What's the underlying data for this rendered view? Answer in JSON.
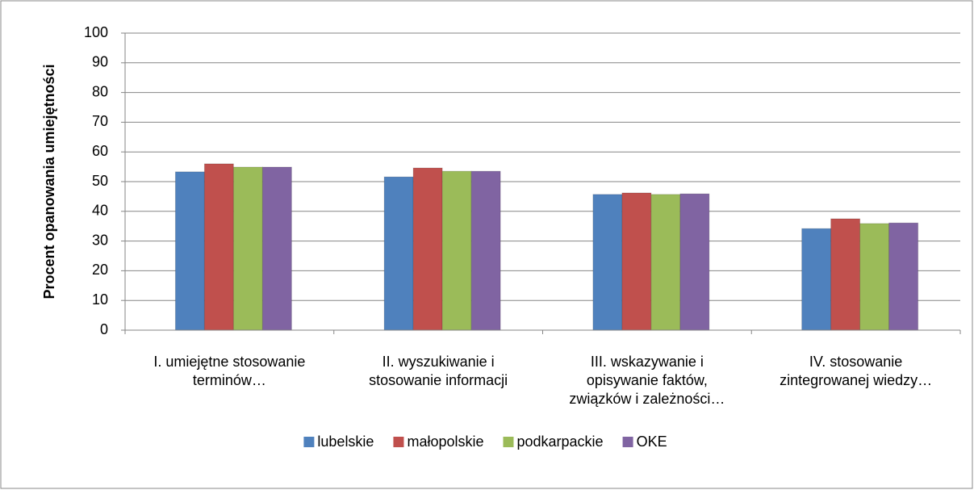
{
  "chart_data": {
    "type": "bar",
    "y_label": "Procent opanowania umiejętności",
    "categories": [
      "I. umiejętne stosowanie terminów…",
      "II. wyszukiwanie i stosowanie informacji",
      "III. wskazywanie i opisywanie faktów, związków i zależności…",
      "IV. stosowanie zintegrowanej wiedzy…"
    ],
    "series": [
      {
        "name": "lubelskie",
        "color": "#4f81bd",
        "values": [
          53.3,
          51.6,
          45.7,
          34.2
        ]
      },
      {
        "name": "małopolskie",
        "color": "#c0504d",
        "values": [
          56.0,
          54.6,
          46.2,
          37.5
        ]
      },
      {
        "name": "podkarpackie",
        "color": "#9bbb59",
        "values": [
          54.9,
          53.5,
          45.7,
          35.9
        ]
      },
      {
        "name": "OKE",
        "color": "#8064a2",
        "values": [
          54.9,
          53.5,
          45.9,
          36.1
        ]
      }
    ],
    "ylim": [
      0,
      100
    ],
    "yticks": [
      0,
      10,
      20,
      30,
      40,
      50,
      60,
      70,
      80,
      90,
      100
    ],
    "grid": true,
    "legend": "bottom"
  }
}
